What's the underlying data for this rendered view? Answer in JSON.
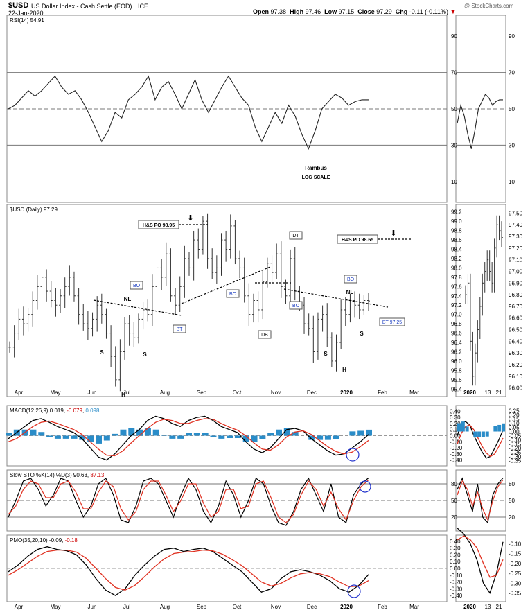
{
  "header": {
    "symbol": "$USD",
    "name": "US Dollar Index - Cash Settle (EOD)",
    "exchange": "ICE",
    "date": "22-Jan-2020",
    "open_label": "Open",
    "open": "97.38",
    "high_label": "High",
    "high": "97.46",
    "low_label": "Low",
    "low": "97.15",
    "close_label": "Close",
    "close": "97.29",
    "chg_label": "Chg",
    "chg": "-0.11 (-0.11%)",
    "watermark": "@ StockCharts.com"
  },
  "chart_data": [
    {
      "type": "line",
      "panel": "rsi",
      "title": "RSI(14) 54.91",
      "y_ticks": [
        90,
        70,
        50,
        30,
        10
      ],
      "ylim": [
        0,
        100
      ],
      "reference_lines": [
        70,
        50,
        30
      ],
      "series": [
        {
          "values": [
            50,
            52,
            56,
            60,
            57,
            60,
            64,
            68,
            62,
            58,
            60,
            55,
            48,
            40,
            32,
            38,
            48,
            45,
            55,
            58,
            62,
            68,
            55,
            62,
            65,
            58,
            50,
            58,
            66,
            55,
            48,
            55,
            62,
            68,
            62,
            56,
            52,
            40,
            32,
            40,
            48,
            42,
            52,
            46,
            36,
            28,
            38,
            50,
            54,
            58,
            56,
            52,
            54,
            55,
            55
          ]
        }
      ],
      "annotations": [
        "Rambus",
        "LOG SCALE"
      ]
    },
    {
      "type": "ohlc",
      "panel": "price",
      "title": "$USD (Daily) 97.29",
      "y_ticks": [
        99.2,
        99.0,
        98.8,
        98.6,
        98.4,
        98.2,
        98.0,
        97.8,
        97.6,
        97.4,
        97.2,
        97.0,
        96.8,
        96.6,
        96.4,
        96.2,
        96.0,
        95.8,
        95.6,
        95.4
      ],
      "side_ticks": [
        97.5,
        97.4,
        97.3,
        97.2,
        97.1,
        97.0,
        96.9,
        96.8,
        96.7,
        96.6,
        96.5,
        96.4,
        96.3,
        96.2,
        96.1,
        96.0
      ],
      "ylim": [
        95.3,
        99.3
      ],
      "x_labels": [
        "Apr",
        "May",
        "Jun",
        "Jul",
        "Aug",
        "Sep",
        "Oct",
        "Nov",
        "Dec",
        "2020",
        "Feb",
        "Mar"
      ],
      "side_x_labels": [
        "2020",
        "13",
        "21"
      ],
      "closes": [
        96.3,
        96.6,
        96.9,
        96.8,
        97.0,
        97.3,
        97.6,
        97.8,
        97.5,
        97.3,
        97.2,
        97.4,
        97.6,
        97.8,
        97.4,
        97.0,
        96.8,
        96.7,
        96.9,
        97.2,
        97.0,
        96.6,
        96.1,
        95.6,
        96.2,
        96.8,
        96.6,
        96.5,
        96.9,
        97.1,
        97.0,
        97.6,
        98.0,
        97.8,
        98.3,
        97.4,
        97.2,
        97.6,
        98.2,
        98.0,
        98.6,
        98.4,
        99.0,
        98.2,
        97.9,
        98.0,
        98.6,
        98.4,
        98.9,
        98.2,
        98.0,
        97.4,
        97.0,
        97.3,
        97.1,
        97.7,
        98.1,
        97.9,
        98.3,
        97.6,
        97.4,
        98.2,
        97.5,
        97.2,
        96.8,
        96.7,
        96.2,
        96.9,
        97.0,
        96.5,
        96.0,
        96.4,
        97.1,
        97.0,
        97.3,
        97.2,
        97.1,
        97.3,
        97.29
      ],
      "side_closes": [
        96.8,
        96.9,
        96.4,
        96.1,
        96.3,
        96.5,
        96.7,
        96.9,
        97.0,
        97.1,
        97.0,
        96.9,
        97.2,
        97.4,
        97.35,
        97.29
      ],
      "labels": {
        "hs_po1": "H&S PO 98.95",
        "hs_po2": "H&S PO 98.65",
        "nl": "NL",
        "s": "S",
        "h": "H",
        "bo": "BO",
        "bt": "BT",
        "db": "DB",
        "dt": "DT",
        "bt2": "BT 97.25"
      }
    },
    {
      "type": "line",
      "panel": "macd",
      "title": "MACD(12,26,9) 0.019, -0.079, 0.098",
      "title_parts": [
        "MACD(12,26,9) 0.019, ",
        "-0.079",
        ", ",
        "0.098"
      ],
      "y_ticks": [
        0.4,
        0.3,
        0.2,
        0.1,
        0.0,
        -0.1,
        -0.2,
        -0.3,
        -0.4
      ],
      "side_ticks": [
        0.25,
        0.2,
        0.15,
        0.1,
        0.05,
        0.0,
        -0.05,
        -0.1,
        -0.15,
        -0.2,
        -0.25,
        -0.3,
        -0.35
      ],
      "ylim": [
        -0.45,
        0.45
      ],
      "series": [
        {
          "name": "MACD",
          "color": "#000000",
          "values": [
            -0.05,
            0.05,
            0.15,
            0.25,
            0.28,
            0.22,
            0.15,
            0.1,
            0.05,
            -0.05,
            -0.2,
            -0.35,
            -0.4,
            -0.3,
            -0.15,
            0.0,
            0.1,
            0.25,
            0.32,
            0.28,
            0.2,
            0.15,
            0.25,
            0.3,
            0.32,
            0.25,
            0.15,
            0.1,
            0.05,
            -0.1,
            -0.22,
            -0.28,
            -0.2,
            -0.05,
            0.1,
            0.12,
            0.08,
            -0.05,
            -0.15,
            -0.25,
            -0.32,
            -0.3,
            -0.2,
            -0.1,
            0.019
          ]
        },
        {
          "name": "Signal",
          "color": "#e03020",
          "values": [
            -0.1,
            -0.05,
            0.05,
            0.15,
            0.22,
            0.24,
            0.2,
            0.15,
            0.1,
            0.02,
            -0.1,
            -0.22,
            -0.32,
            -0.33,
            -0.25,
            -0.12,
            0.0,
            0.12,
            0.22,
            0.27,
            0.25,
            0.2,
            0.2,
            0.25,
            0.28,
            0.27,
            0.2,
            0.14,
            0.09,
            0.0,
            -0.12,
            -0.22,
            -0.24,
            -0.15,
            -0.02,
            0.06,
            0.08,
            0.02,
            -0.08,
            -0.18,
            -0.26,
            -0.3,
            -0.27,
            -0.18,
            -0.079
          ]
        },
        {
          "name": "Histogram",
          "color": "#2a8cc8",
          "values": [
            0.05,
            0.1,
            0.1,
            0.1,
            0.06,
            -0.02,
            -0.05,
            -0.05,
            -0.05,
            -0.07,
            -0.1,
            -0.13,
            -0.08,
            0.03,
            0.1,
            0.12,
            0.1,
            0.13,
            0.1,
            0.01,
            -0.05,
            -0.05,
            0.05,
            0.05,
            0.04,
            -0.02,
            -0.05,
            -0.04,
            -0.04,
            -0.1,
            -0.1,
            -0.06,
            0.04,
            0.1,
            0.12,
            0.06,
            0.0,
            -0.07,
            -0.07,
            -0.07,
            -0.06,
            0.0,
            0.07,
            0.08,
            0.098
          ]
        }
      ]
    },
    {
      "type": "line",
      "panel": "sto",
      "title": "Slow STO %K(14) %D(3) 90.63, 87.13",
      "title_parts": [
        "Slow STO %K(14) %D(3) 90.63, ",
        "87.13"
      ],
      "y_ticks": [
        80,
        50,
        20
      ],
      "ylim": [
        0,
        100
      ],
      "reference_lines": [
        80,
        50,
        20
      ],
      "series": [
        {
          "name": "%K",
          "color": "#000000",
          "values": [
            20,
            50,
            85,
            90,
            70,
            40,
            60,
            90,
            85,
            50,
            20,
            40,
            80,
            90,
            60,
            15,
            10,
            40,
            85,
            90,
            80,
            50,
            20,
            60,
            90,
            70,
            30,
            10,
            40,
            85,
            60,
            20,
            50,
            90,
            80,
            40,
            10,
            5,
            30,
            70,
            90,
            60,
            30,
            80,
            20,
            10,
            60,
            80,
            90.63
          ]
        },
        {
          "name": "%D",
          "color": "#e03020",
          "values": [
            25,
            40,
            70,
            85,
            80,
            55,
            55,
            80,
            85,
            65,
            35,
            35,
            65,
            85,
            75,
            35,
            15,
            30,
            70,
            85,
            85,
            60,
            30,
            50,
            80,
            80,
            45,
            20,
            30,
            70,
            70,
            35,
            40,
            80,
            85,
            55,
            20,
            10,
            25,
            60,
            85,
            70,
            40,
            65,
            35,
            15,
            50,
            75,
            87.13
          ]
        }
      ]
    },
    {
      "type": "line",
      "panel": "pmo",
      "title": "PMO(35,20,10) -0.09, -0.18",
      "title_parts": [
        "PMO(35,20,10) -0.09, ",
        "-0.18"
      ],
      "y_ticks": [
        0.4,
        0.3,
        0.2,
        0.1,
        0.0,
        -0.1,
        -0.2,
        -0.3,
        -0.4
      ],
      "side_ticks": [
        -0.1,
        -0.15,
        -0.2,
        -0.25,
        -0.3,
        -0.35
      ],
      "ylim": [
        -0.45,
        0.45
      ],
      "series": [
        {
          "name": "PMO",
          "color": "#000000",
          "values": [
            -0.05,
            0.05,
            0.18,
            0.28,
            0.32,
            0.28,
            0.26,
            0.2,
            0.05,
            -0.15,
            -0.32,
            -0.4,
            -0.3,
            -0.1,
            0.05,
            0.18,
            0.28,
            0.3,
            0.25,
            0.28,
            0.3,
            0.25,
            0.15,
            0.05,
            -0.05,
            -0.2,
            -0.35,
            -0.3,
            -0.15,
            -0.05,
            -0.02,
            -0.05,
            -0.1,
            -0.18,
            -0.3,
            -0.35,
            -0.25,
            -0.09
          ]
        },
        {
          "name": "Signal",
          "color": "#e03020",
          "values": [
            -0.1,
            -0.02,
            0.08,
            0.18,
            0.25,
            0.27,
            0.27,
            0.24,
            0.15,
            0.0,
            -0.15,
            -0.28,
            -0.32,
            -0.25,
            -0.12,
            0.02,
            0.14,
            0.22,
            0.24,
            0.25,
            0.27,
            0.26,
            0.21,
            0.13,
            0.04,
            -0.08,
            -0.2,
            -0.26,
            -0.22,
            -0.14,
            -0.08,
            -0.06,
            -0.08,
            -0.12,
            -0.2,
            -0.27,
            -0.26,
            -0.18
          ]
        }
      ]
    }
  ]
}
